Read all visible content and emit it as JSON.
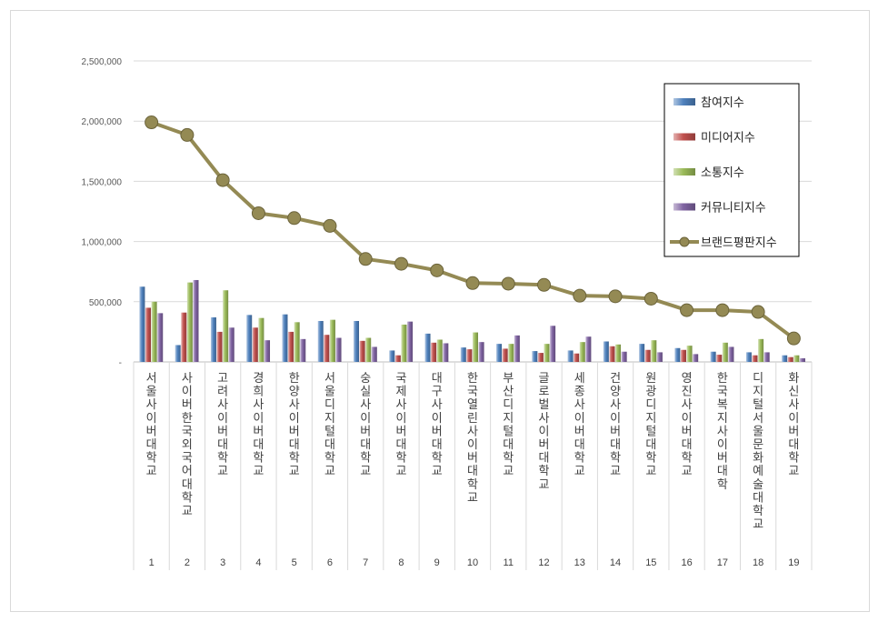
{
  "chart_data": {
    "type": "bar",
    "title": "",
    "xlabel": "",
    "ylabel": "",
    "ylim": [
      0,
      2500000
    ],
    "yticks": [
      0,
      500000,
      1000000,
      1500000,
      2000000,
      2500000
    ],
    "ytick_labels": [
      "-",
      "500,000",
      "1,000,000",
      "1,500,000",
      "2,000,000",
      "2,500,000"
    ],
    "grid": true,
    "legend_position": "top-right",
    "categories": [
      "서울사이버대학교",
      "사이버한국외국어대학교",
      "고려사이버대학교",
      "경희사이버대학교",
      "한양사이버대학교",
      "서울디지털대학교",
      "숭실사이버대학교",
      "국제사이버대학교",
      "대구사이버대학교",
      "한국열린사이버대학교",
      "부산디지털대학교",
      "글로벌사이버대학교",
      "세종사이버대학교",
      "건양사이버대학교",
      "원광디지털대학교",
      "영진사이버대학교",
      "한국복지사이버대학",
      "디지털서울문화예술대학교",
      "화신사이버대학교"
    ],
    "ranks": [
      "1",
      "2",
      "3",
      "4",
      "5",
      "6",
      "7",
      "8",
      "9",
      "10",
      "11",
      "12",
      "13",
      "14",
      "15",
      "16",
      "17",
      "18",
      "19"
    ],
    "series": [
      {
        "name": "참여지수",
        "kind": "bar",
        "color": "#4f81bd",
        "values": [
          625000,
          140000,
          370000,
          390000,
          395000,
          340000,
          340000,
          95000,
          235000,
          120000,
          150000,
          90000,
          95000,
          170000,
          150000,
          115000,
          85000,
          80000,
          55000
        ]
      },
      {
        "name": "미디어지수",
        "kind": "bar",
        "color": "#c0504d",
        "values": [
          450000,
          410000,
          250000,
          285000,
          250000,
          225000,
          175000,
          55000,
          160000,
          105000,
          110000,
          75000,
          70000,
          130000,
          100000,
          100000,
          60000,
          55000,
          40000
        ]
      },
      {
        "name": "소통지수",
        "kind": "bar",
        "color": "#9bbb59",
        "values": [
          500000,
          660000,
          595000,
          365000,
          330000,
          350000,
          200000,
          310000,
          185000,
          245000,
          150000,
          150000,
          165000,
          145000,
          180000,
          135000,
          160000,
          190000,
          55000
        ]
      },
      {
        "name": "커뮤니티지수",
        "kind": "bar",
        "color": "#8064a2",
        "values": [
          405000,
          680000,
          285000,
          180000,
          190000,
          200000,
          125000,
          335000,
          155000,
          165000,
          220000,
          300000,
          210000,
          85000,
          80000,
          65000,
          125000,
          80000,
          30000
        ]
      },
      {
        "name": "브랜드평판지수",
        "kind": "line",
        "color": "#948a54",
        "values": [
          1990000,
          1885000,
          1510000,
          1235000,
          1195000,
          1130000,
          855000,
          815000,
          760000,
          655000,
          650000,
          640000,
          550000,
          545000,
          525000,
          430000,
          430000,
          415000,
          195000
        ]
      }
    ]
  }
}
